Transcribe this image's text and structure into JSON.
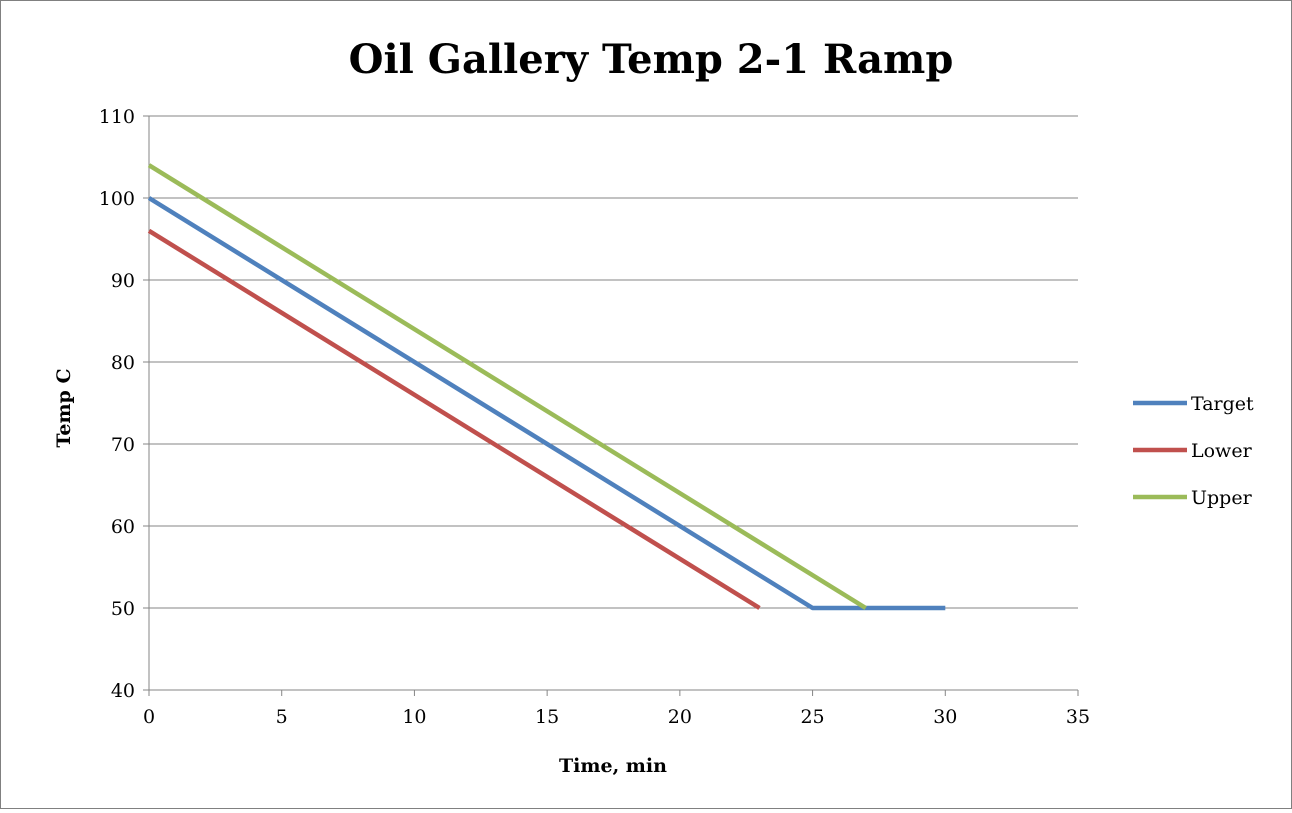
{
  "chart_data": {
    "type": "line",
    "title": "Oil Gallery Temp 2-1 Ramp",
    "xlabel": "Time, min",
    "ylabel": "Temp  C",
    "xlim": [
      0,
      35
    ],
    "ylim": [
      40,
      110
    ],
    "x_ticks": [
      0,
      5,
      10,
      15,
      20,
      25,
      30,
      35
    ],
    "y_ticks": [
      40,
      50,
      60,
      70,
      80,
      90,
      100,
      110
    ],
    "grid": "horizontal",
    "legend_position": "right",
    "series": [
      {
        "name": "Target",
        "color": "#4f81bd",
        "points": [
          [
            0,
            100
          ],
          [
            25,
            50
          ],
          [
            30,
            50
          ]
        ]
      },
      {
        "name": "Lower",
        "color": "#c0504d",
        "points": [
          [
            0,
            96
          ],
          [
            23,
            50
          ]
        ]
      },
      {
        "name": "Upper",
        "color": "#9bbb59",
        "points": [
          [
            0,
            104
          ],
          [
            27,
            50
          ]
        ]
      }
    ]
  }
}
